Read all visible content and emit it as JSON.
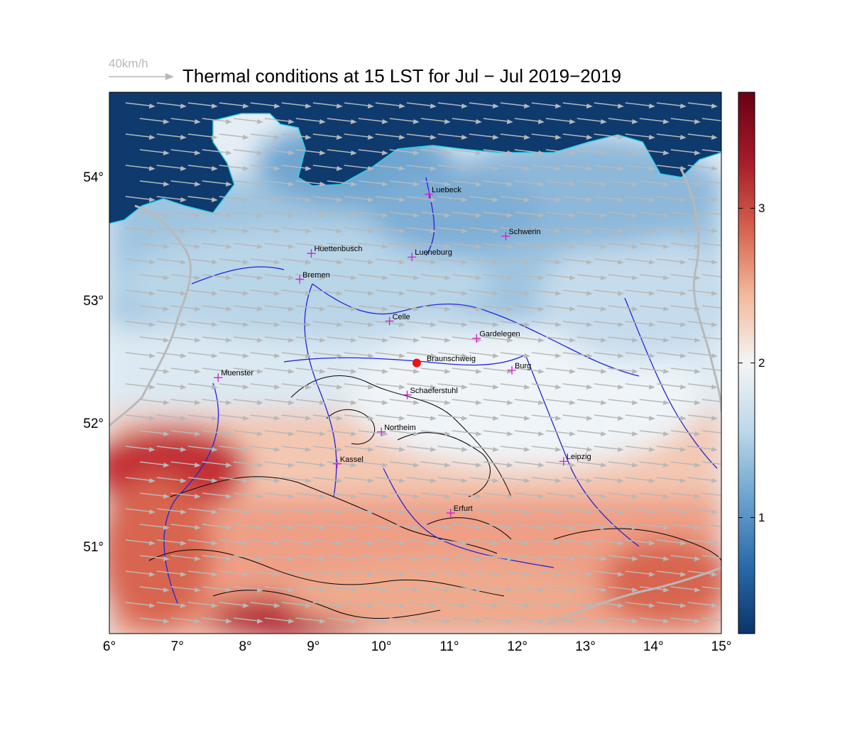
{
  "title": "Thermal conditions at 15 LST for Jul − Jul  2019−2019",
  "wind_legend": {
    "label": "40km/h",
    "arrow_color": "#b8b8b8"
  },
  "map": {
    "lon_range": [
      6,
      15
    ],
    "lat_range": [
      50.3,
      54.7
    ],
    "lon_ticks": [
      {
        "value": 6,
        "label": "6°"
      },
      {
        "value": 7,
        "label": "7°"
      },
      {
        "value": 8,
        "label": "8°"
      },
      {
        "value": 9,
        "label": "9°"
      },
      {
        "value": 10,
        "label": "10°"
      },
      {
        "value": 11,
        "label": "11°"
      },
      {
        "value": 12,
        "label": "12°"
      },
      {
        "value": 13,
        "label": "13°"
      },
      {
        "value": 14,
        "label": "14°"
      },
      {
        "value": 15,
        "label": "15°"
      }
    ],
    "lat_ticks": [
      {
        "value": 54,
        "label": "54°"
      },
      {
        "value": 53,
        "label": "53°"
      },
      {
        "value": 52,
        "label": "52°"
      },
      {
        "value": 51,
        "label": "51°"
      }
    ],
    "cities": [
      {
        "name": "Luebeck",
        "lon": 10.7,
        "lat": 53.87
      },
      {
        "name": "Schwerin",
        "lon": 11.83,
        "lat": 53.53
      },
      {
        "name": "Huettenbusch",
        "lon": 8.97,
        "lat": 53.39
      },
      {
        "name": "Lueneburg",
        "lon": 10.45,
        "lat": 53.36
      },
      {
        "name": "Bremen",
        "lon": 8.8,
        "lat": 53.18
      },
      {
        "name": "Celle",
        "lon": 10.12,
        "lat": 52.84
      },
      {
        "name": "Gardelegen",
        "lon": 11.4,
        "lat": 52.7
      },
      {
        "name": "Braunschweig",
        "lon": 10.52,
        "lat": 52.5,
        "highlight": true
      },
      {
        "name": "Burg",
        "lon": 11.92,
        "lat": 52.44
      },
      {
        "name": "Muenster",
        "lon": 7.6,
        "lat": 52.38
      },
      {
        "name": "Schaeferstuhl",
        "lon": 10.38,
        "lat": 52.24
      },
      {
        "name": "Northeim",
        "lon": 10.0,
        "lat": 51.94
      },
      {
        "name": "Kassel",
        "lon": 9.35,
        "lat": 51.68
      },
      {
        "name": "Leipzig",
        "lon": 12.68,
        "lat": 51.7
      },
      {
        "name": "Erfurt",
        "lon": 11.02,
        "lat": 51.28
      }
    ]
  },
  "colorbar": {
    "range": [
      0.25,
      3.75
    ],
    "ticks": [
      {
        "value": 1,
        "label": "1"
      },
      {
        "value": 2,
        "label": "2"
      },
      {
        "value": 3,
        "label": "3"
      }
    ],
    "stops": [
      "#0a3468",
      "#2a6aaa",
      "#6ba3cf",
      "#bcd8ea",
      "#f5f5f5",
      "#f3b99b",
      "#d5604d",
      "#a51a28",
      "#6b0013"
    ]
  },
  "colors": {
    "sea": "#0e3a6e",
    "coast": "#29d3e6",
    "rivers": "#2323d8",
    "borders": "#b9b9b9",
    "cities": "#d21bd6",
    "highlight": "#ee1111",
    "contours": "#000000"
  }
}
